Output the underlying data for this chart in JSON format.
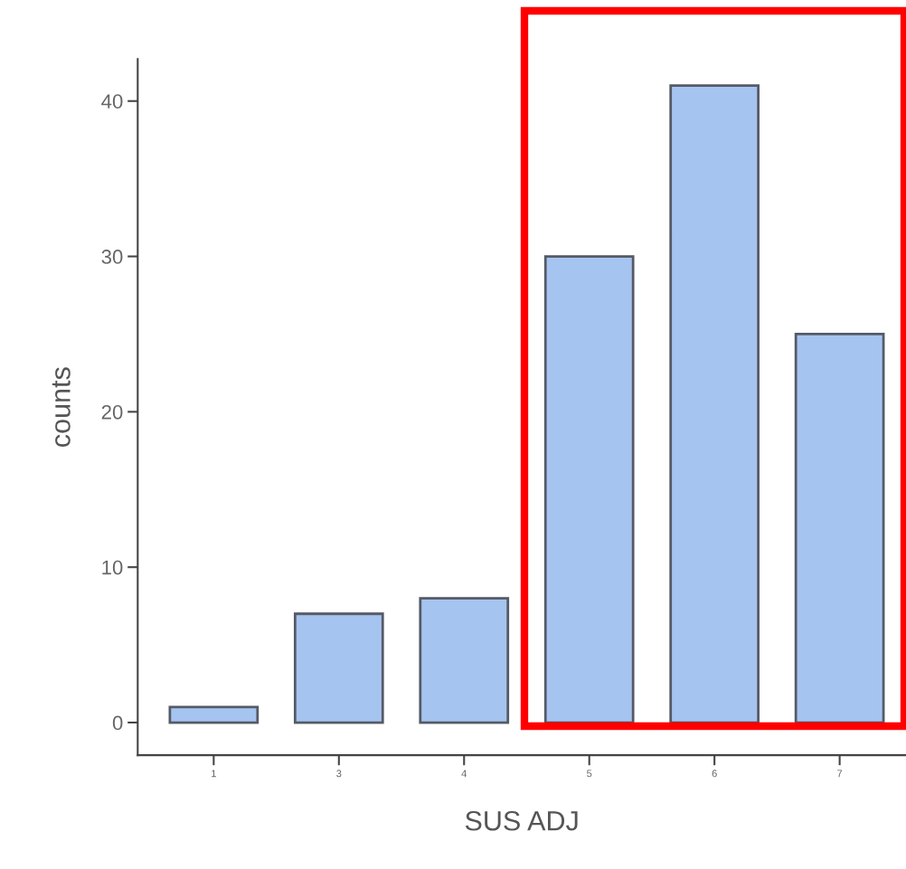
{
  "chart_data": {
    "type": "bar",
    "xlabel": "SUS ADJ",
    "ylabel": "counts",
    "categories": [
      "1",
      "3",
      "4",
      "5",
      "6",
      "7"
    ],
    "values": [
      1,
      7,
      8,
      30,
      41,
      25
    ],
    "color": "#a6c4f0",
    "ylim": [
      -2.1,
      42.7
    ],
    "yticks": [
      0,
      10,
      20,
      30,
      40
    ],
    "grid": false
  }
}
